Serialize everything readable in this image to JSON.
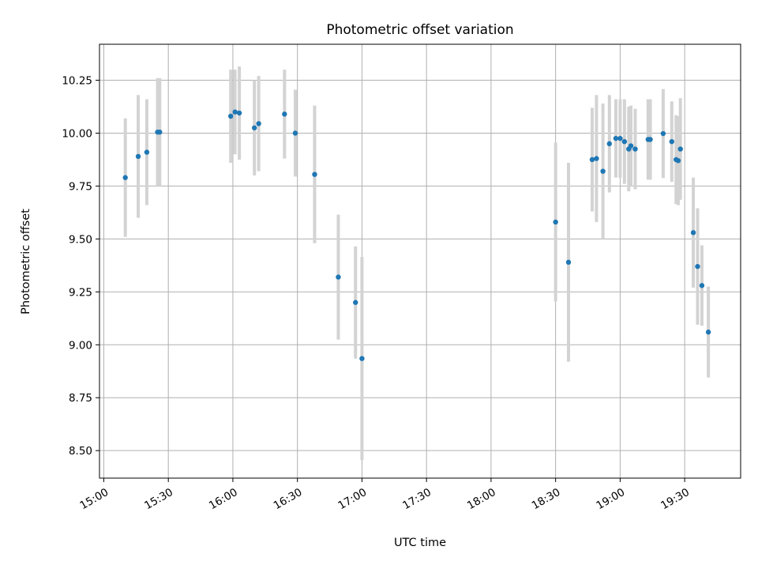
{
  "chart_data": {
    "type": "scatter",
    "title": "Photometric offset variation",
    "xlabel": "UTC time",
    "ylabel": "Photometric offset",
    "x_is_time": true,
    "xlim": [
      "14:58",
      "19:56"
    ],
    "ylim": [
      8.37,
      10.42
    ],
    "x_ticks": [
      "15:00",
      "15:30",
      "16:00",
      "16:30",
      "17:00",
      "17:30",
      "18:00",
      "18:30",
      "19:00",
      "19:30"
    ],
    "y_ticks": [
      "8.50",
      "8.75",
      "9.00",
      "9.25",
      "9.50",
      "9.75",
      "10.00",
      "10.25"
    ],
    "grid": true,
    "legend": "none",
    "point_color": "#1f77b4",
    "errorbar_color": "#d3d3d3",
    "points": [
      {
        "x": "15:10",
        "y": 9.79,
        "err": 0.28
      },
      {
        "x": "15:16",
        "y": 9.89,
        "err": 0.29
      },
      {
        "x": "15:20",
        "y": 9.91,
        "err": 0.25
      },
      {
        "x": "15:25",
        "y": 10.005,
        "err": 0.255
      },
      {
        "x": "15:26",
        "y": 10.005,
        "err": 0.255
      },
      {
        "x": "15:59",
        "y": 10.08,
        "err": 0.22
      },
      {
        "x": "16:01",
        "y": 10.1,
        "err": 0.2
      },
      {
        "x": "16:03",
        "y": 10.095,
        "err": 0.22
      },
      {
        "x": "16:10",
        "y": 10.025,
        "err": 0.225
      },
      {
        "x": "16:12",
        "y": 10.045,
        "err": 0.225
      },
      {
        "x": "16:24",
        "y": 10.09,
        "err": 0.21
      },
      {
        "x": "16:29",
        "y": 10.0,
        "err": 0.205
      },
      {
        "x": "16:38",
        "y": 9.805,
        "err": 0.325
      },
      {
        "x": "16:49",
        "y": 9.32,
        "err": 0.295
      },
      {
        "x": "16:57",
        "y": 9.2,
        "err": 0.265
      },
      {
        "x": "17:00",
        "y": 8.935,
        "err": 0.48
      },
      {
        "x": "18:30",
        "y": 9.58,
        "err": 0.375
      },
      {
        "x": "18:36",
        "y": 9.39,
        "err": 0.47
      },
      {
        "x": "18:47",
        "y": 9.875,
        "err": 0.245
      },
      {
        "x": "18:49",
        "y": 9.88,
        "err": 0.3
      },
      {
        "x": "18:52",
        "y": 9.82,
        "err": 0.32
      },
      {
        "x": "18:55",
        "y": 9.95,
        "err": 0.23
      },
      {
        "x": "18:58",
        "y": 9.975,
        "err": 0.185
      },
      {
        "x": "19:00",
        "y": 9.975,
        "err": 0.185
      },
      {
        "x": "19:02",
        "y": 9.96,
        "err": 0.2
      },
      {
        "x": "19:04",
        "y": 9.925,
        "err": 0.2
      },
      {
        "x": "19:05",
        "y": 9.94,
        "err": 0.19
      },
      {
        "x": "19:07",
        "y": 9.925,
        "err": 0.19
      },
      {
        "x": "19:13",
        "y": 9.97,
        "err": 0.19
      },
      {
        "x": "19:14",
        "y": 9.97,
        "err": 0.19
      },
      {
        "x": "19:20",
        "y": 9.998,
        "err": 0.21
      },
      {
        "x": "19:24",
        "y": 9.96,
        "err": 0.19
      },
      {
        "x": "19:26",
        "y": 9.875,
        "err": 0.21
      },
      {
        "x": "19:27",
        "y": 9.87,
        "err": 0.21
      },
      {
        "x": "19:28",
        "y": 9.925,
        "err": 0.24
      },
      {
        "x": "19:34",
        "y": 9.53,
        "err": 0.26
      },
      {
        "x": "19:36",
        "y": 9.37,
        "err": 0.275
      },
      {
        "x": "19:38",
        "y": 9.28,
        "err": 0.19
      },
      {
        "x": "19:41",
        "y": 9.06,
        "err": 0.215
      }
    ]
  }
}
